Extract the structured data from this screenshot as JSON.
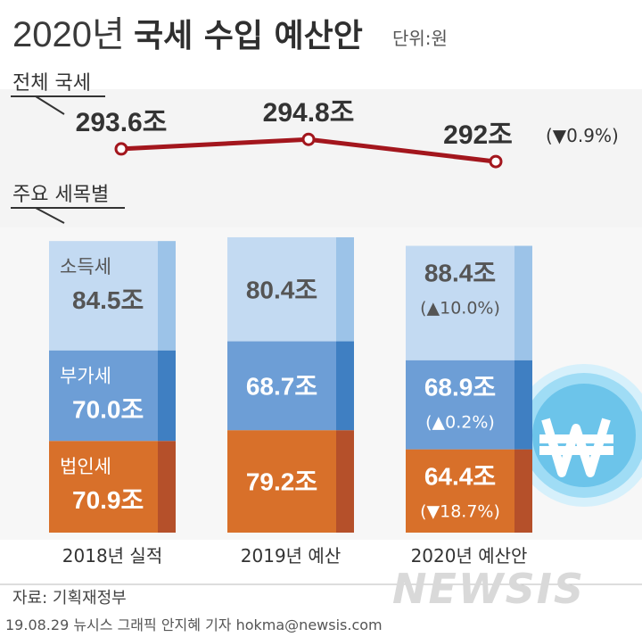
{
  "header": {
    "title_year": "2020년",
    "title_rest": "국세 수입 예산안",
    "unit": "단위:원"
  },
  "total_label": "전체 국세",
  "breakdown_label": "주요 세목별",
  "chart_data": {
    "type": "bar",
    "stacked": true,
    "categories": [
      "2018년 실적",
      "2019년 예산",
      "2020년 예산안"
    ],
    "total": {
      "values": [
        293.6,
        294.8,
        292
      ],
      "labels": [
        "293.6조",
        "294.8조",
        "292조"
      ],
      "change": "(▼0.9%)"
    },
    "series": [
      {
        "name": "소득세",
        "values": [
          84.5,
          80.4,
          88.4
        ],
        "labels": [
          "84.5조",
          "80.4조",
          "88.4조"
        ],
        "change": "(▲10.0%)",
        "color": "#c3daf2",
        "edge_color": "#9cc3e8"
      },
      {
        "name": "부가세",
        "values": [
          70.0,
          68.7,
          68.9
        ],
        "labels": [
          "70.0조",
          "68.7조",
          "68.9조"
        ],
        "change": "(▲0.2%)",
        "color": "#6d9ed6",
        "edge_color": "#3f7fc2"
      },
      {
        "name": "법인세",
        "values": [
          70.9,
          79.2,
          64.4
        ],
        "labels": [
          "70.9조",
          "79.2조",
          "64.4조"
        ],
        "change": "(▼18.7%)",
        "color": "#d8702a",
        "edge_color": "#b5502a"
      }
    ],
    "line_color": "#a3161d"
  },
  "footer": {
    "source": "자료: 기획재정부",
    "credit": "19.08.29 뉴시스 그래픽 안지혜 기자 hokma@newsis.com",
    "watermark": "NEWSIS"
  }
}
